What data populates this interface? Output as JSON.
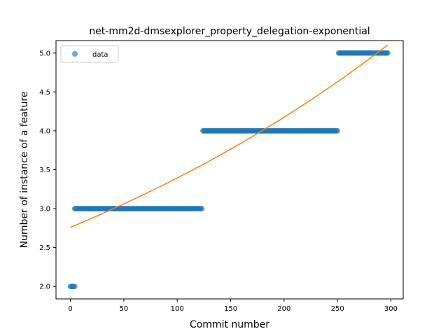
{
  "chart_data": {
    "type": "scatter",
    "title": "net-mm2d-dmsexplorer_property_delegation-exponential",
    "xlabel": "Commit number",
    "ylabel": "Number of instance of a feature",
    "xlim": [
      -13.5,
      311.5
    ],
    "ylim": [
      1.84,
      5.16
    ],
    "xticks": [
      0,
      50,
      100,
      150,
      200,
      250,
      300
    ],
    "yticks": [
      2.0,
      2.5,
      3.0,
      3.5,
      4.0,
      4.5,
      5.0
    ],
    "xtick_labels": [
      "0",
      "50",
      "100",
      "150",
      "200",
      "250",
      "300"
    ],
    "ytick_labels": [
      "2.0",
      "2.5",
      "3.0",
      "3.5",
      "4.0",
      "4.5",
      "5.0"
    ],
    "grid": false,
    "legend": {
      "position": "top-left",
      "entries": [
        "data"
      ]
    },
    "series": [
      {
        "name": "data",
        "kind": "points",
        "color": "#1f77b4",
        "opacity": 0.6,
        "segments": [
          {
            "x_start": 0,
            "x_end": 4,
            "y": 2.0
          },
          {
            "x_start": 4,
            "x_end": 123,
            "y": 3.0
          },
          {
            "x_start": 124,
            "x_end": 250,
            "y": 4.0
          },
          {
            "x_start": 251,
            "x_end": 297,
            "y": 5.0
          }
        ]
      },
      {
        "kind": "line",
        "color": "#ff7f0e",
        "model": "exponential",
        "a": 2.76,
        "b": 0.00207,
        "x_start": 0,
        "x_end": 297
      }
    ]
  }
}
